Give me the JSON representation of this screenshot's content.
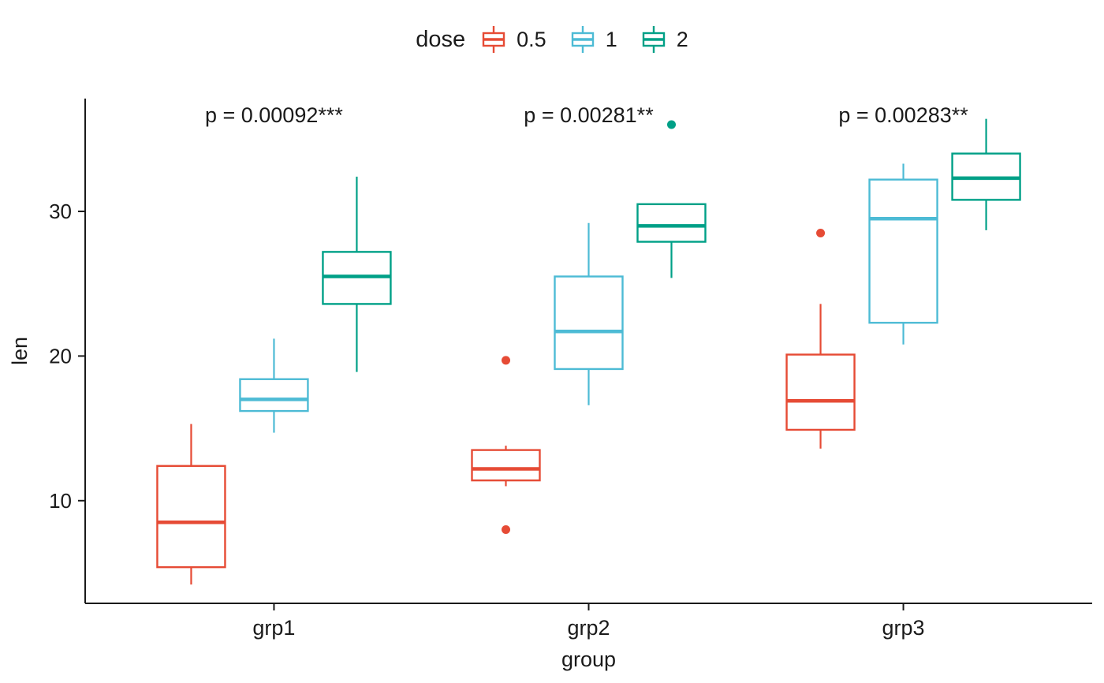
{
  "figure": {
    "background": "#FFFFFF",
    "text_color": "#1a1a1a",
    "axis_color": "#1a1a1a"
  },
  "legend": {
    "title": "dose",
    "position": "top",
    "entries": [
      {
        "label": "0.5",
        "color": "#E64B35"
      },
      {
        "label": "1",
        "color": "#4DBBD5"
      },
      {
        "label": "2",
        "color": "#00A087"
      }
    ]
  },
  "chart_data": {
    "type": "boxplot",
    "title": "",
    "xlabel": "group",
    "ylabel": "len",
    "categories": [
      "grp1",
      "grp2",
      "grp3"
    ],
    "y_ticks": [
      10,
      20,
      30
    ],
    "ylim": [
      2.9,
      37.8
    ],
    "grid": false,
    "legend_position": "top",
    "annotations": [
      {
        "category": "grp1",
        "text": "p = 0.00092***"
      },
      {
        "category": "grp2",
        "text": "p = 0.00281**"
      },
      {
        "category": "grp3",
        "text": "p = 0.00283**"
      }
    ],
    "series": [
      {
        "name": "0.5",
        "color": "#E64B35",
        "boxes": [
          {
            "category": "grp1",
            "whislo": 4.2,
            "q1": 5.4,
            "med": 8.5,
            "q3": 12.4,
            "whishi": 15.3,
            "outliers": []
          },
          {
            "category": "grp2",
            "whislo": 11.0,
            "q1": 11.4,
            "med": 12.2,
            "q3": 13.5,
            "whishi": 13.8,
            "outliers": [
              19.7,
              8.0
            ]
          },
          {
            "category": "grp3",
            "whislo": 13.6,
            "q1": 14.9,
            "med": 16.9,
            "q3": 20.1,
            "whishi": 23.6,
            "outliers": [
              28.5
            ]
          }
        ]
      },
      {
        "name": "1",
        "color": "#4DBBD5",
        "boxes": [
          {
            "category": "grp1",
            "whislo": 14.7,
            "q1": 16.2,
            "med": 17.0,
            "q3": 18.4,
            "whishi": 21.2,
            "outliers": []
          },
          {
            "category": "grp2",
            "whislo": 16.6,
            "q1": 19.1,
            "med": 21.7,
            "q3": 25.5,
            "whishi": 29.2,
            "outliers": []
          },
          {
            "category": "grp3",
            "whislo": 20.8,
            "q1": 22.3,
            "med": 29.5,
            "q3": 32.2,
            "whishi": 33.3,
            "outliers": []
          }
        ]
      },
      {
        "name": "2",
        "color": "#00A087",
        "boxes": [
          {
            "category": "grp1",
            "whislo": 18.9,
            "q1": 23.6,
            "med": 25.5,
            "q3": 27.2,
            "whishi": 32.4,
            "outliers": []
          },
          {
            "category": "grp2",
            "whislo": 25.4,
            "q1": 27.9,
            "med": 29.0,
            "q3": 30.5,
            "whishi": 30.5,
            "outliers": [
              36.0
            ]
          },
          {
            "category": "grp3",
            "whislo": 28.7,
            "q1": 30.8,
            "med": 32.3,
            "q3": 34.0,
            "whishi": 36.4,
            "outliers": []
          }
        ]
      }
    ]
  }
}
